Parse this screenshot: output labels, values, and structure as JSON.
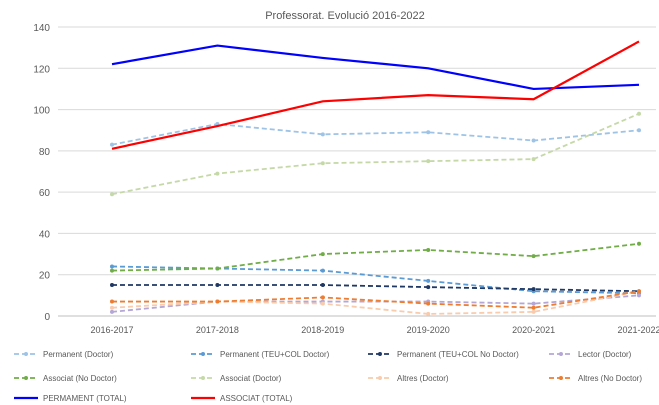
{
  "chart_data": {
    "type": "line",
    "title": "Professorat. Evolució 2016-2022",
    "categories": [
      "2016-2017",
      "2017-2018",
      "2018-2019",
      "2019-2020",
      "2020-2021",
      "2021-2022"
    ],
    "ylim": [
      0,
      140
    ],
    "yticks": [
      0,
      20,
      40,
      60,
      80,
      100,
      120,
      140
    ],
    "grid": true,
    "legend_position": "bottom",
    "series": [
      {
        "name": "Permanent (Doctor)",
        "color": "#9DC3E6",
        "style": "dashed-marker",
        "values": [
          83,
          93,
          88,
          89,
          85,
          90
        ]
      },
      {
        "name": "Permanent (TEU+COL Doctor)",
        "color": "#5B9BD5",
        "style": "dashed-marker",
        "values": [
          24,
          23,
          22,
          17,
          12,
          11
        ]
      },
      {
        "name": "Permanent (TEU+COL No Doctor)",
        "color": "#1F3864",
        "style": "dashed-marker",
        "values": [
          15,
          15,
          15,
          14,
          13,
          12
        ]
      },
      {
        "name": "Lector (Doctor)",
        "color": "#B4A7D6",
        "style": "dashed-marker",
        "values": [
          2,
          7,
          7,
          7,
          6,
          10
        ]
      },
      {
        "name": "Associat (No Doctor)",
        "color": "#70AD47",
        "style": "dashed-marker",
        "values": [
          22,
          23,
          30,
          32,
          29,
          35
        ]
      },
      {
        "name": "Associat (Doctor)",
        "color": "#C5D9A8",
        "style": "dashed-marker",
        "values": [
          59,
          69,
          74,
          75,
          76,
          98
        ]
      },
      {
        "name": "Altres (Doctor)",
        "color": "#F8CBAD",
        "style": "dashed-marker",
        "values": [
          4,
          7,
          6,
          1,
          2,
          12
        ]
      },
      {
        "name": "Altres (No Doctor)",
        "color": "#ED7D31",
        "style": "dashed-marker",
        "values": [
          7,
          7,
          9,
          6,
          4,
          12
        ]
      },
      {
        "name": "PERMAMENT (TOTAL)",
        "color": "#0000FF",
        "style": "solid",
        "values": [
          122,
          131,
          125,
          120,
          110,
          112
        ]
      },
      {
        "name": "ASSOCIAT (TOTAL)",
        "color": "#FF0000",
        "style": "solid",
        "values": [
          81,
          92,
          104,
          107,
          105,
          133
        ]
      }
    ]
  }
}
